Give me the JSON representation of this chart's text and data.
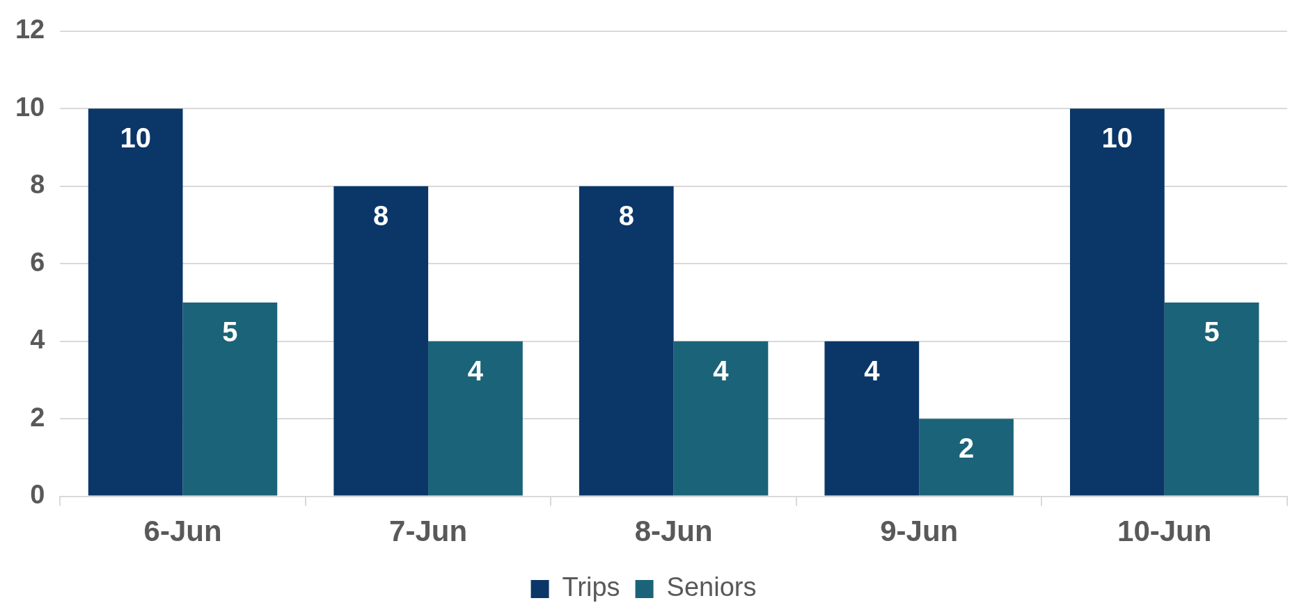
{
  "chart_data": {
    "type": "bar",
    "categories": [
      "6-Jun",
      "7-Jun",
      "8-Jun",
      "9-Jun",
      "10-Jun"
    ],
    "series": [
      {
        "name": "Trips",
        "color": "#0b3668",
        "values": [
          10,
          8,
          8,
          4,
          10
        ]
      },
      {
        "name": "Seniors",
        "color": "#1b6378",
        "values": [
          5,
          4,
          4,
          2,
          5
        ]
      }
    ],
    "ylim": [
      0,
      12
    ],
    "yticks": [
      0,
      2,
      4,
      6,
      8,
      10,
      12
    ],
    "grid": "y",
    "legend": "bottom",
    "data_labels": true
  }
}
